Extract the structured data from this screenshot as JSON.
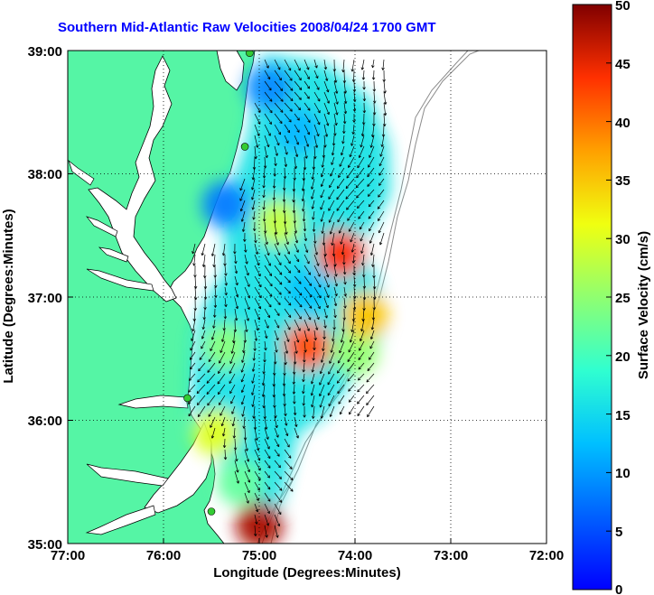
{
  "title": "Southern Mid-Atlantic Raw Velocities 2008/04/24 1700 GMT",
  "x_axis": {
    "label": "Longitude (Degrees:Minutes)",
    "ticks": [
      "77:00",
      "76:00",
      "75:00",
      "74:00",
      "73:00",
      "72:00"
    ]
  },
  "y_axis": {
    "label": "Latitude (Degrees:Minutes)",
    "ticks": [
      "39:00",
      "38:00",
      "37:00",
      "36:00",
      "35:00"
    ]
  },
  "colorbar": {
    "label": "Surface Velocity (cm/s)",
    "ticks": [
      "50",
      "45",
      "40",
      "35",
      "30",
      "25",
      "20",
      "15",
      "10",
      "5",
      "0"
    ],
    "min": 0,
    "max": 50,
    "colormap": "jet"
  },
  "colors": {
    "land": "#55f5a5",
    "water": "#ffffff",
    "title": "#0000ff",
    "grid": "#000000",
    "bathymetry": "#8c8c8c",
    "site_marker": "#33cc33",
    "vector": "#000000"
  },
  "map": {
    "lon_range": [
      -77,
      -72
    ],
    "lat_range": [
      35,
      39
    ],
    "grid": "dotted",
    "coastline": true,
    "bathymetry_contours": true
  },
  "chart_data": {
    "type": "heatmap",
    "title": "Southern Mid-Atlantic Raw Velocities 2008/04/24 1700 GMT",
    "xlabel": "Longitude (Degrees:Minutes)",
    "ylabel": "Latitude (Degrees:Minutes)",
    "xlim": [
      -77,
      -72
    ],
    "ylim": [
      35,
      39
    ],
    "value_label": "Surface Velocity (cm/s)",
    "value_range": [
      0,
      50
    ],
    "radar_sites": [
      {
        "lon": -75.1,
        "lat": 38.98
      },
      {
        "lon": -75.15,
        "lat": 38.22
      },
      {
        "lon": -75.75,
        "lat": 36.18
      },
      {
        "lon": -75.5,
        "lat": 35.26
      }
    ],
    "velocity_patches": [
      {
        "lon": -74.9,
        "lat": 38.7,
        "speed": 9
      },
      {
        "lon": -74.6,
        "lat": 38.35,
        "speed": 12
      },
      {
        "lon": -75.35,
        "lat": 37.75,
        "speed": 8
      },
      {
        "lon": -74.8,
        "lat": 37.6,
        "speed": 28
      },
      {
        "lon": -74.15,
        "lat": 37.35,
        "speed": 44
      },
      {
        "lon": -74.5,
        "lat": 37.05,
        "speed": 13
      },
      {
        "lon": -74.5,
        "lat": 36.6,
        "speed": 42
      },
      {
        "lon": -74.0,
        "lat": 36.55,
        "speed": 25
      },
      {
        "lon": -73.9,
        "lat": 36.85,
        "speed": 35
      },
      {
        "lon": -75.35,
        "lat": 36.6,
        "speed": 24
      },
      {
        "lon": -75.0,
        "lat": 36.2,
        "speed": 15
      },
      {
        "lon": -75.45,
        "lat": 35.9,
        "speed": 30
      },
      {
        "lon": -75.2,
        "lat": 35.5,
        "speed": 22
      },
      {
        "lon": -75.0,
        "lat": 35.15,
        "speed": 48
      }
    ]
  }
}
